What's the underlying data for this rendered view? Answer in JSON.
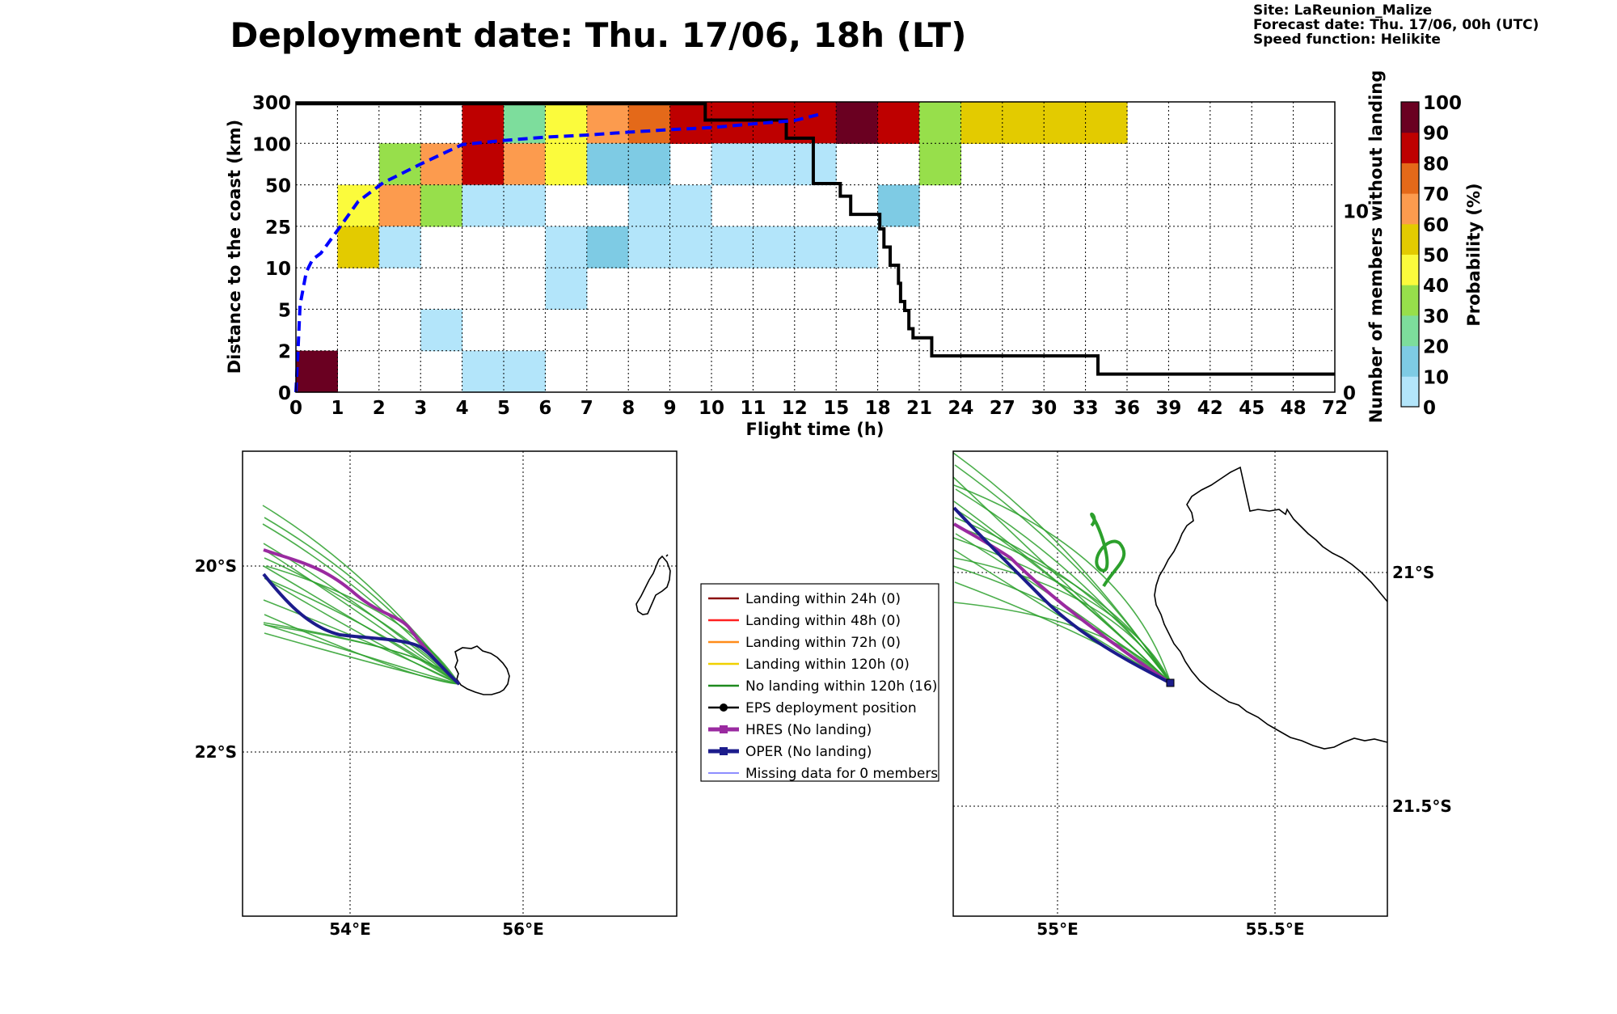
{
  "header": {
    "title": "Deployment date: Thu. 17/06, 18h (LT)",
    "site": "Site: LaReunion_Malize",
    "forecast_date": "Forecast date: Thu. 17/06, 00h (UTC)",
    "speed_function": "Speed function: Helikite"
  },
  "chart_data": [
    {
      "type": "heatmap",
      "xlabel": "Flight time (h)",
      "ylabel": "Distance to the coast (km)",
      "y2label": "Number of members without landing",
      "colorbar_label": "Probability (%)",
      "x_ticks": [
        "0",
        "1",
        "2",
        "3",
        "4",
        "5",
        "6",
        "7",
        "8",
        "9",
        "10",
        "11",
        "12",
        "15",
        "18",
        "21",
        "24",
        "27",
        "30",
        "33",
        "36",
        "39",
        "42",
        "45",
        "48",
        "72"
      ],
      "y_ticks": [
        "0",
        "2",
        "5",
        "10",
        "25",
        "50",
        "100",
        "300"
      ],
      "y2_ticks": [
        "0",
        "10"
      ],
      "y2_range": [
        0,
        16
      ],
      "colorbar_ticks": [
        "0",
        "10",
        "20",
        "30",
        "40",
        "50",
        "60",
        "70",
        "80",
        "90",
        "100"
      ],
      "colors": {
        "bin_0_10": "#b3e5fa",
        "bin_10_20": "#7ecbe4",
        "bin_20_30": "#7ddd9c",
        "bin_30_40": "#97df4b",
        "bin_40_50": "#fbfb3c",
        "bin_50_60": "#e3cb00",
        "bin_60_70": "#fc9b4e",
        "bin_70_80": "#e46919",
        "bin_80_90": "#be0000",
        "bin_90_100": "#6a0021"
      },
      "cells_note": "each cell: [x_bin_index, y_bin_index, probability_bin_lower_%]",
      "cells": [
        [
          0,
          0,
          90
        ],
        [
          1,
          4,
          40
        ],
        [
          1,
          3,
          50
        ],
        [
          2,
          5,
          30
        ],
        [
          2,
          4,
          60
        ],
        [
          2,
          3,
          0
        ],
        [
          3,
          5,
          60
        ],
        [
          3,
          4,
          30
        ],
        [
          3,
          1,
          0
        ],
        [
          4,
          6,
          80
        ],
        [
          4,
          5,
          80
        ],
        [
          4,
          4,
          0
        ],
        [
          4,
          0,
          0
        ],
        [
          5,
          6,
          20
        ],
        [
          5,
          5,
          60
        ],
        [
          5,
          4,
          0
        ],
        [
          5,
          0,
          0
        ],
        [
          6,
          6,
          40
        ],
        [
          6,
          5,
          40
        ],
        [
          6,
          3,
          0
        ],
        [
          6,
          2,
          0
        ],
        [
          7,
          6,
          60
        ],
        [
          7,
          5,
          10
        ],
        [
          7,
          3,
          10
        ],
        [
          8,
          6,
          70
        ],
        [
          8,
          5,
          10
        ],
        [
          8,
          4,
          0
        ],
        [
          8,
          3,
          0
        ],
        [
          9,
          6,
          80
        ],
        [
          9,
          4,
          0
        ],
        [
          9,
          3,
          0
        ],
        [
          10,
          6,
          80
        ],
        [
          10,
          5,
          0
        ],
        [
          10,
          3,
          0
        ],
        [
          11,
          6,
          80
        ],
        [
          11,
          5,
          0
        ],
        [
          11,
          3,
          0
        ],
        [
          12,
          6,
          80
        ],
        [
          12,
          5,
          0
        ],
        [
          12,
          3,
          0
        ],
        [
          13,
          6,
          90
        ],
        [
          13,
          3,
          0
        ],
        [
          14,
          6,
          80
        ],
        [
          14,
          4,
          10
        ],
        [
          15,
          6,
          30
        ],
        [
          15,
          5,
          30
        ],
        [
          16,
          6,
          50
        ],
        [
          17,
          6,
          50
        ],
        [
          18,
          6,
          50
        ],
        [
          19,
          6,
          50
        ]
      ],
      "series": [
        {
          "name": "EPS deployment position",
          "type": "step",
          "axis": "right",
          "color": "#000000",
          "points": [
            [
              0,
              15.9
            ],
            [
              9.85,
              15.9
            ],
            [
              9.85,
              15
            ],
            [
              11.8,
              15
            ],
            [
              11.8,
              14
            ],
            [
              12.45,
              14
            ],
            [
              12.45,
              11.5
            ],
            [
              13.1,
              11.5
            ],
            [
              13.1,
              10.8
            ],
            [
              13.35,
              10.8
            ],
            [
              13.35,
              9.8
            ],
            [
              14.05,
              9.8
            ],
            [
              14.05,
              9
            ],
            [
              14.15,
              9
            ],
            [
              14.15,
              8
            ],
            [
              14.3,
              8
            ],
            [
              14.3,
              7
            ],
            [
              14.5,
              7
            ],
            [
              14.5,
              6
            ],
            [
              14.55,
              6
            ],
            [
              14.55,
              5
            ],
            [
              14.65,
              5
            ],
            [
              14.65,
              4.5
            ],
            [
              14.75,
              4.5
            ],
            [
              14.75,
              3.5
            ],
            [
              14.85,
              3.5
            ],
            [
              14.85,
              3
            ],
            [
              15.3,
              3
            ],
            [
              15.3,
              2
            ],
            [
              19.3,
              2
            ],
            [
              19.3,
              1
            ],
            [
              25,
              1
            ]
          ]
        },
        {
          "type": "dashed-line",
          "axis": "left",
          "color": "#0000ff",
          "points": [
            [
              0,
              0
            ],
            [
              0.05,
              1.0
            ],
            [
              0.1,
              2.1
            ],
            [
              0.25,
              2.9
            ],
            [
              0.4,
              3.2
            ],
            [
              0.6,
              3.35
            ],
            [
              1.0,
              3.9
            ],
            [
              1.5,
              4.6
            ],
            [
              2.1,
              5.05
            ],
            [
              3.0,
              5.5
            ],
            [
              4.0,
              5.97
            ],
            [
              5.0,
              6.07
            ],
            [
              6.0,
              6.15
            ],
            [
              7.0,
              6.2
            ],
            [
              8.0,
              6.27
            ],
            [
              9.0,
              6.33
            ],
            [
              10.0,
              6.38
            ],
            [
              11.0,
              6.47
            ],
            [
              12.0,
              6.55
            ],
            [
              12.6,
              6.7
            ]
          ]
        }
      ]
    },
    {
      "type": "map",
      "lat_ticks": [
        "20°S",
        "22°S"
      ],
      "lon_ticks": [
        "54°E",
        "56°E"
      ],
      "track_colors": {
        "members": "#2ca02c",
        "hres": "#9a2aa0",
        "oper": "#1c1c8c"
      }
    },
    {
      "type": "map",
      "lat_ticks": [
        "21°S",
        "21.5°S"
      ],
      "lon_ticks": [
        "55°E",
        "55.5°E"
      ]
    }
  ],
  "legend": {
    "items": [
      {
        "label": "Landing within 24h (0)",
        "color": "#8b1010",
        "style": "line"
      },
      {
        "label": "Landing within 48h (0)",
        "color": "#ff2020",
        "style": "line"
      },
      {
        "label": "Landing within 72h (0)",
        "color": "#ff8c1a",
        "style": "line"
      },
      {
        "label": "Landing within 120h (0)",
        "color": "#f0d000",
        "style": "line"
      },
      {
        "label": "No landing within 120h (16)",
        "color": "#1f8a1f",
        "style": "line"
      },
      {
        "label": "EPS deployment position",
        "color": "#000000",
        "style": "dot-line"
      },
      {
        "label": "HRES (No landing)",
        "color": "#9a2aa0",
        "style": "square-thick"
      },
      {
        "label": "OPER (No landing)",
        "color": "#1c1c8c",
        "style": "square-thick"
      },
      {
        "label": "Missing data for 0 members",
        "color": "#4a4aff",
        "style": "thin"
      }
    ]
  }
}
